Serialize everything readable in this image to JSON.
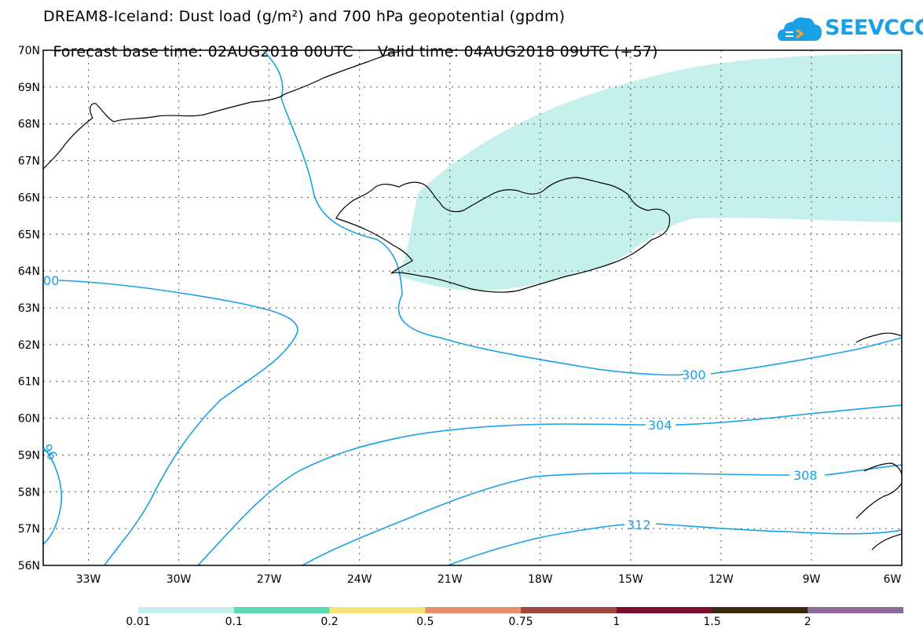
{
  "header": {
    "title": "DREAM8-Iceland: Dust load (g/m²) and 700 hPa geopotential (gpdm)",
    "forecast_base": "Forecast base time: 02AUG2018 00UTC",
    "valid_time": "Valid time: 04AUG2018 09UTC (+57)"
  },
  "logo": {
    "text": "SEEVCCC",
    "icon": "cloud-logo-icon"
  },
  "map": {
    "lat_labels": [
      "70N",
      "69N",
      "68N",
      "67N",
      "66N",
      "65N",
      "64N",
      "63N",
      "62N",
      "61N",
      "60N",
      "59N",
      "58N",
      "57N",
      "56N"
    ],
    "lon_labels": [
      "33W",
      "30W",
      "27W",
      "24W",
      "21W",
      "18W",
      "15W",
      "12W",
      "9W",
      "6W"
    ],
    "contour_labels": {
      "c300_left": "00",
      "c300": "300",
      "c304": "304",
      "c308": "308",
      "c312": "312",
      "c296": "96"
    },
    "colors": {
      "dust_fill": "#c5f0ec",
      "contour": "#1aa0e6",
      "coast": "#000000"
    }
  },
  "colorbar": {
    "labels": [
      "0.01",
      "0.1",
      "0.2",
      "0.5",
      "0.75",
      "1",
      "1.5",
      "2"
    ],
    "colors": [
      "#c5f0ec",
      "#5fd9b4",
      "#f5e47a",
      "#e98f6c",
      "#a04a3e",
      "#7a0e2c",
      "#3a2a14",
      "#8e6a9a"
    ]
  }
}
